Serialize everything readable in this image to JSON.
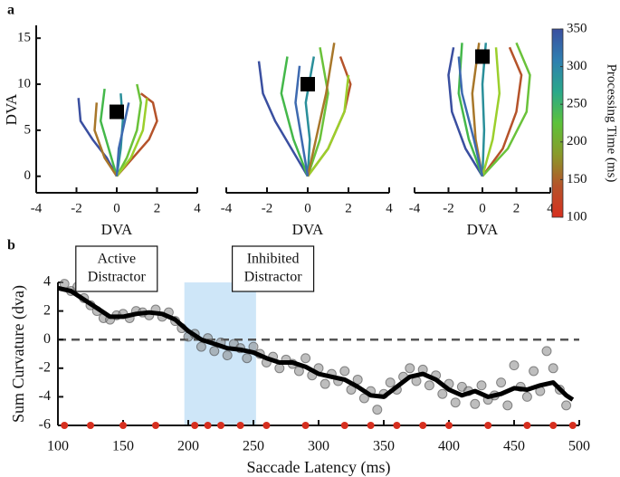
{
  "chart_data": [
    {
      "type": "line",
      "panel_label": "a",
      "xlabel": "DVA",
      "ylabel": "DVA",
      "xlim": [
        -4,
        4
      ],
      "xticks": [
        -4,
        -2,
        0,
        2,
        4
      ],
      "ylim": [
        -1.5,
        16
      ],
      "yticks": [
        0,
        5,
        10,
        15
      ],
      "distractor": {
        "x": 0,
        "y": 7
      },
      "series": [
        {
          "color": "#3a4fa0",
          "x": [
            0,
            -0.5,
            -1.2,
            -1.8,
            -1.9
          ],
          "values": [
            0,
            2,
            4,
            6,
            8.5
          ]
        },
        {
          "color": "#b5532a",
          "x": [
            0,
            0.8,
            1.6,
            2,
            1.8,
            1.2
          ],
          "values": [
            0,
            2,
            4,
            6,
            8,
            9
          ]
        },
        {
          "color": "#6ac23a",
          "x": [
            0,
            0.5,
            1,
            1.2,
            1
          ],
          "values": [
            0,
            2,
            5,
            8,
            10
          ]
        },
        {
          "color": "#44b84a",
          "x": [
            0,
            -0.4,
            -0.8,
            -0.6
          ],
          "values": [
            0,
            3,
            6,
            9.5
          ]
        },
        {
          "color": "#2a8f9a",
          "x": [
            0,
            0.2,
            0.3,
            0.2
          ],
          "values": [
            0,
            3,
            6,
            9
          ]
        },
        {
          "color": "#9bcf2c",
          "x": [
            0,
            0.7,
            1.3,
            1.5
          ],
          "values": [
            0,
            2,
            5,
            8.5
          ]
        },
        {
          "color": "#a8772a",
          "x": [
            0,
            -0.6,
            -1.1,
            -1.0
          ],
          "values": [
            0,
            2,
            5,
            8
          ]
        },
        {
          "color": "#3e6ab0",
          "x": [
            0,
            0.1,
            0.4,
            0.6
          ],
          "values": [
            0,
            3,
            6,
            8
          ]
        }
      ]
    },
    {
      "type": "line",
      "xlabel": "DVA",
      "xlim": [
        -4,
        4
      ],
      "xticks": [
        -4,
        -2,
        0,
        2,
        4
      ],
      "ylim": [
        -1.5,
        16
      ],
      "distractor": {
        "x": 0,
        "y": 10
      },
      "series": [
        {
          "color": "#3a4fa0",
          "x": [
            0,
            -0.8,
            -1.6,
            -2.2,
            -2.4
          ],
          "values": [
            0,
            3,
            6,
            9,
            12.5
          ]
        },
        {
          "color": "#b5532a",
          "x": [
            0,
            1,
            1.8,
            2.1,
            1.6
          ],
          "values": [
            0,
            3,
            7,
            10,
            13
          ]
        },
        {
          "color": "#6ac23a",
          "x": [
            0,
            0.6,
            1.0,
            0.6
          ],
          "values": [
            0,
            4,
            9,
            14
          ]
        },
        {
          "color": "#44b84a",
          "x": [
            0,
            -0.7,
            -1.3,
            -1.0
          ],
          "values": [
            0,
            4,
            9,
            13
          ]
        },
        {
          "color": "#2a8f9a",
          "x": [
            0,
            0.1,
            -0.1,
            0.3
          ],
          "values": [
            0,
            4,
            8,
            13
          ]
        },
        {
          "color": "#9bcf2c",
          "x": [
            0,
            1.0,
            1.8,
            2.0
          ],
          "values": [
            0,
            3,
            7,
            11
          ]
        },
        {
          "color": "#a8772a",
          "x": [
            0,
            0.4,
            0.9,
            1.3
          ],
          "values": [
            0,
            4,
            9,
            14.5
          ]
        },
        {
          "color": "#3e6ab0",
          "x": [
            0,
            -0.3,
            -0.6,
            -0.4
          ],
          "values": [
            0,
            4,
            8,
            12
          ]
        }
      ]
    },
    {
      "type": "line",
      "xlabel": "DVA",
      "xlim": [
        -4,
        4
      ],
      "xticks": [
        -4,
        -2,
        0,
        2,
        4
      ],
      "ylim": [
        -1.5,
        16
      ],
      "distractor": {
        "x": 0,
        "y": 13
      },
      "series": [
        {
          "color": "#3a4fa0",
          "x": [
            0,
            -1.0,
            -1.8,
            -2.0,
            -1.7
          ],
          "values": [
            0,
            3,
            7,
            11,
            14
          ]
        },
        {
          "color": "#b5532a",
          "x": [
            0,
            1.2,
            2.0,
            2.3,
            1.6
          ],
          "values": [
            0,
            3,
            7,
            11,
            14
          ]
        },
        {
          "color": "#6ac23a",
          "x": [
            0,
            1.5,
            2.6,
            2.8,
            2.0
          ],
          "values": [
            0,
            3,
            7,
            11,
            14.5
          ]
        },
        {
          "color": "#44b84a",
          "x": [
            0,
            -0.8,
            -1.4,
            -1.2
          ],
          "values": [
            0,
            4,
            9,
            14.5
          ]
        },
        {
          "color": "#2a8f9a",
          "x": [
            0,
            0.1,
            0.0,
            0.2
          ],
          "values": [
            0,
            5,
            10,
            14.5
          ]
        },
        {
          "color": "#9bcf2c",
          "x": [
            0,
            0.6,
            1.0,
            0.8
          ],
          "values": [
            0,
            4,
            9,
            14
          ]
        },
        {
          "color": "#a8772a",
          "x": [
            0,
            -0.4,
            -0.6,
            -0.2
          ],
          "values": [
            0,
            4,
            9,
            14.5
          ]
        },
        {
          "color": "#3e6ab0",
          "x": [
            0,
            -0.5,
            -1.2,
            -1.4
          ],
          "values": [
            0,
            4,
            9,
            13
          ]
        }
      ],
      "colorbar": {
        "label": "Processing Time (ms)",
        "lim": [
          100,
          350
        ],
        "ticks": [
          100,
          150,
          200,
          250,
          300,
          350
        ],
        "colors": [
          "#d7301f",
          "#b5532a",
          "#8a9a2a",
          "#5cc23a",
          "#2aa88a",
          "#2f7fb0",
          "#3a4fa0"
        ]
      }
    },
    {
      "type": "scatter",
      "panel_label": "b",
      "xlabel": "Saccade Latency (ms)",
      "ylabel": "Sum Curvature (dva)",
      "xlim": [
        100,
        500
      ],
      "xticks": [
        100,
        150,
        200,
        250,
        300,
        350,
        400,
        450,
        500
      ],
      "ylim": [
        -6,
        4
      ],
      "yticks": [
        -6,
        -4,
        -2,
        0,
        2,
        4
      ],
      "reference_line": 0,
      "shaded": [
        197,
        252
      ],
      "annotations": [
        {
          "x": 145,
          "lines": [
            "Active",
            "Distractor"
          ]
        },
        {
          "x": 265,
          "lines": [
            "Inhibited",
            "Distractor"
          ]
        }
      ],
      "scatter": {
        "color": "#888888",
        "x": [
          105,
          110,
          115,
          120,
          125,
          130,
          135,
          140,
          145,
          150,
          155,
          160,
          165,
          170,
          175,
          180,
          185,
          190,
          195,
          200,
          205,
          210,
          215,
          220,
          225,
          230,
          235,
          240,
          245,
          250,
          255,
          260,
          265,
          270,
          275,
          280,
          285,
          290,
          295,
          300,
          305,
          310,
          315,
          320,
          325,
          330,
          335,
          340,
          345,
          350,
          355,
          360,
          365,
          370,
          375,
          380,
          385,
          390,
          395,
          400,
          405,
          410,
          415,
          420,
          425,
          430,
          435,
          440,
          445,
          450,
          455,
          460,
          465,
          470,
          475,
          480,
          485,
          490
        ],
        "values": [
          3.9,
          3.4,
          3.7,
          2.9,
          2.4,
          2.0,
          1.5,
          1.4,
          1.7,
          1.8,
          1.5,
          2.0,
          1.9,
          1.7,
          2.1,
          1.6,
          1.9,
          1.3,
          0.8,
          0.2,
          0.4,
          -0.5,
          0.1,
          -0.8,
          -0.2,
          -1.1,
          -0.3,
          -0.6,
          -1.3,
          -0.5,
          -1.0,
          -1.6,
          -1.2,
          -2.0,
          -1.4,
          -1.7,
          -2.2,
          -1.3,
          -2.5,
          -2.0,
          -3.1,
          -2.4,
          -2.9,
          -2.2,
          -3.5,
          -2.8,
          -4.1,
          -3.6,
          -4.9,
          -3.8,
          -3.0,
          -3.5,
          -2.6,
          -2.0,
          -2.9,
          -2.1,
          -3.2,
          -2.5,
          -3.8,
          -3.1,
          -4.4,
          -3.3,
          -3.6,
          -4.5,
          -3.2,
          -4.2,
          -3.9,
          -3.0,
          -4.6,
          -1.8,
          -3.3,
          -4.0,
          -2.2,
          -3.6,
          -0.8,
          -2.0,
          -3.5,
          -4.6
        ]
      },
      "smooth": {
        "color": "#000000",
        "x": [
          100,
          110,
          120,
          130,
          140,
          150,
          160,
          170,
          180,
          190,
          200,
          210,
          220,
          230,
          240,
          250,
          260,
          270,
          280,
          290,
          300,
          310,
          320,
          330,
          340,
          350,
          360,
          370,
          380,
          390,
          400,
          410,
          420,
          430,
          440,
          450,
          460,
          470,
          480,
          490,
          495
        ],
        "values": [
          3.6,
          3.4,
          2.8,
          2.2,
          1.6,
          1.6,
          1.8,
          1.9,
          1.8,
          1.4,
          0.6,
          0,
          -0.3,
          -0.6,
          -0.7,
          -0.9,
          -1.3,
          -1.6,
          -1.6,
          -1.9,
          -2.4,
          -2.6,
          -2.8,
          -3.3,
          -3.9,
          -4.0,
          -3.3,
          -2.6,
          -2.4,
          -2.8,
          -3.5,
          -3.9,
          -3.6,
          -4.0,
          -3.8,
          -3.4,
          -3.5,
          -3.2,
          -3.0,
          -3.9,
          -4.2
        ]
      },
      "significant": {
        "color": "#d62f1f",
        "x": [
          105,
          125,
          150,
          175,
          205,
          215,
          225,
          240,
          260,
          290,
          320,
          340,
          360,
          380,
          400,
          430,
          460,
          480,
          495
        ],
        "values": [
          -6,
          -6,
          -6,
          -6,
          -6,
          -6,
          -6,
          -6,
          -6,
          -6,
          -6,
          -6,
          -6,
          -6,
          -6,
          -6,
          -6,
          -6,
          -6
        ]
      }
    }
  ]
}
